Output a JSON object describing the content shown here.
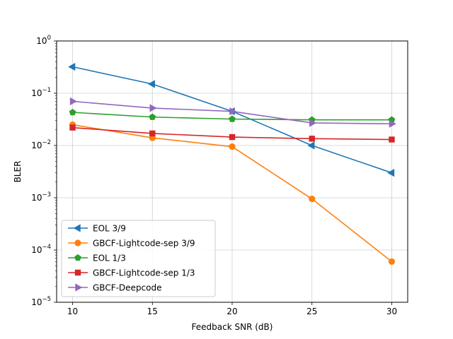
{
  "chart_data": {
    "type": "line",
    "title": "",
    "xlabel": "Feedback SNR (dB)",
    "ylabel": "BLER",
    "yscale": "log",
    "xlim": [
      9.0,
      31.0
    ],
    "ylim": [
      1e-05,
      1
    ],
    "xticks": [
      10,
      15,
      20,
      25,
      30
    ],
    "yticks": [
      {
        "value": 1,
        "base": "10",
        "exp": "0"
      },
      {
        "value": 0.1,
        "base": "10",
        "exp": "−1"
      },
      {
        "value": 0.01,
        "base": "10",
        "exp": "−2"
      },
      {
        "value": 0.001,
        "base": "10",
        "exp": "−3"
      },
      {
        "value": 0.0001,
        "base": "10",
        "exp": "−4"
      },
      {
        "value": 1e-05,
        "base": "10",
        "exp": "−5"
      }
    ],
    "grid": true,
    "legend_position": "lower-left",
    "x": [
      10,
      15,
      20,
      25,
      30
    ],
    "series": [
      {
        "name": "EOL 3/9",
        "color": "#1f77b4",
        "marker": "triangle-left",
        "values": [
          0.32,
          0.15,
          0.045,
          0.01,
          0.003
        ]
      },
      {
        "name": "GBCF-Lightcode-sep 3/9",
        "color": "#ff7f0e",
        "marker": "circle",
        "values": [
          0.025,
          0.014,
          0.0095,
          0.00095,
          6e-05
        ]
      },
      {
        "name": "EOL 1/3",
        "color": "#2ca02c",
        "marker": "pentagon",
        "values": [
          0.043,
          0.035,
          0.032,
          0.031,
          0.031
        ]
      },
      {
        "name": "GBCF-Lightcode-sep 1/3",
        "color": "#d62728",
        "marker": "square",
        "values": [
          0.022,
          0.017,
          0.0145,
          0.0135,
          0.013
        ]
      },
      {
        "name": "GBCF-Deepcode",
        "color": "#9467bd",
        "marker": "triangle-right",
        "values": [
          0.07,
          0.052,
          0.045,
          0.027,
          0.026
        ]
      }
    ]
  }
}
